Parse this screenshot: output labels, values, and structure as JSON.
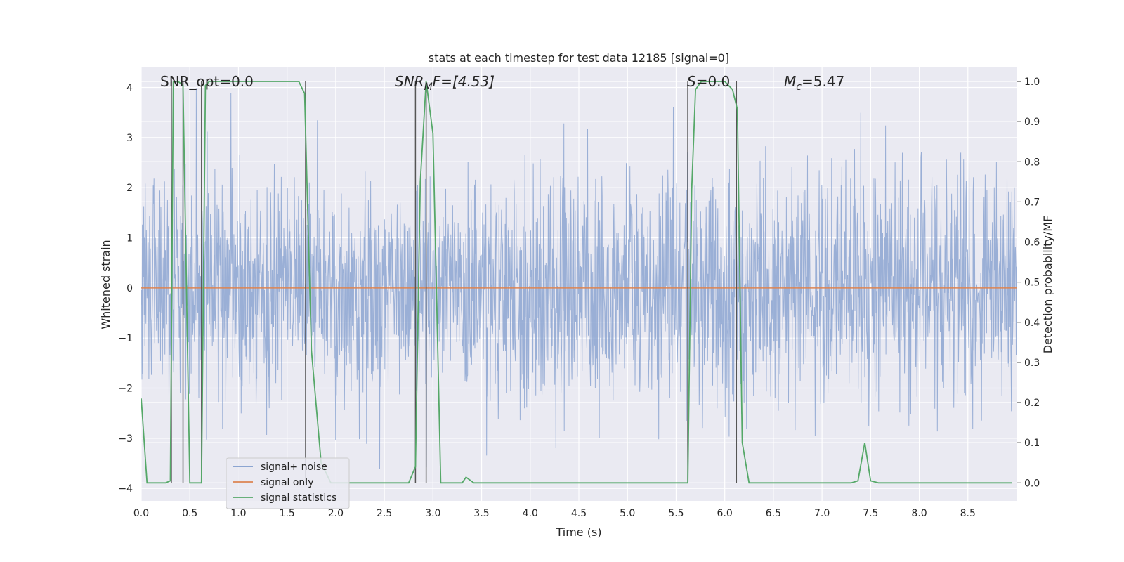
{
  "chart_data": {
    "type": "line",
    "title": "stats at each timestep for test data 12185 [signal=0]",
    "xlabel": "Time (s)",
    "ylabel": "Whitened strain",
    "y2label": "Detection probability/MF",
    "xlim": [
      0.0,
      9.0
    ],
    "ylim": [
      -4.25,
      4.4
    ],
    "y2lim": [
      -0.045,
      1.035
    ],
    "x_ticks": [
      "0.0",
      "0.5",
      "1.0",
      "1.5",
      "2.0",
      "2.5",
      "3.0",
      "3.5",
      "4.0",
      "4.5",
      "5.0",
      "5.5",
      "6.0",
      "6.5",
      "7.0",
      "7.5",
      "8.0",
      "8.5"
    ],
    "y_ticks": [
      "4",
      "3",
      "2",
      "1",
      "0",
      "−1",
      "−2",
      "−3",
      "−4"
    ],
    "y2_ticks": [
      "1.0",
      "0.9",
      "0.8",
      "0.7",
      "0.6",
      "0.5",
      "0.4",
      "0.3",
      "0.2",
      "0.1",
      "0.0"
    ],
    "annotations": {
      "snr_opt": "SNR_opt=0.0",
      "snr_mf_name": "SNR",
      "snr_mf_sub": "M",
      "snr_mf_rest": "F=[4.53]",
      "s_name": "S",
      "s_rest": "=0.0",
      "mc_name": "M",
      "mc_sub": "c",
      "mc_rest": "=5.47"
    },
    "legend": {
      "position": "lower-left",
      "entries": [
        "signal+ noise",
        "signal only",
        "signal statistics"
      ]
    },
    "colors": {
      "noise": "#7f9bcc",
      "signal": "#dd8452",
      "stats": "#55a868",
      "vline": "#555555",
      "plot_bg": "#eaeaf2",
      "grid": "#ffffff"
    },
    "series": [
      {
        "name": "signal+ noise",
        "note": "dense whitened noise, typical amplitude about ±1.5, peaks near ±4",
        "y_range": [
          -3.7,
          4.0
        ]
      },
      {
        "name": "signal only",
        "x": [
          0.0,
          9.0
        ],
        "y": [
          0.0,
          0.0
        ]
      },
      {
        "name": "signal statistics",
        "x": [
          0.0,
          0.06,
          0.25,
          0.3,
          0.33,
          0.38,
          0.43,
          0.5,
          0.62,
          0.66,
          0.7,
          0.75,
          1.0,
          1.3,
          1.62,
          1.68,
          1.75,
          1.85,
          1.95,
          2.5,
          2.75,
          2.82,
          2.87,
          2.93,
          3.0,
          3.08,
          3.3,
          3.34,
          3.42,
          3.5,
          5.0,
          5.62,
          5.66,
          5.7,
          5.76,
          6.0,
          6.08,
          6.13,
          6.18,
          6.25,
          7.3,
          7.37,
          7.44,
          7.5,
          7.58,
          8.95
        ],
        "y": [
          0.21,
          0.0,
          0.0,
          0.005,
          1.0,
          1.0,
          0.99,
          0.0,
          0.0,
          0.99,
          1.0,
          1.0,
          1.0,
          1.0,
          1.0,
          0.97,
          0.33,
          0.05,
          0.0,
          0.0,
          0.0,
          0.04,
          0.75,
          1.0,
          0.87,
          0.0,
          0.0,
          0.014,
          0.0,
          0.0,
          0.0,
          0.0,
          0.73,
          0.98,
          1.0,
          1.0,
          0.98,
          0.93,
          0.1,
          0.0,
          0.0,
          0.005,
          0.1,
          0.005,
          0.0,
          0.0
        ]
      }
    ],
    "vlines_x": [
      0.31,
      0.43,
      0.62,
      1.69,
      2.82,
      2.93,
      5.62,
      6.12
    ]
  }
}
